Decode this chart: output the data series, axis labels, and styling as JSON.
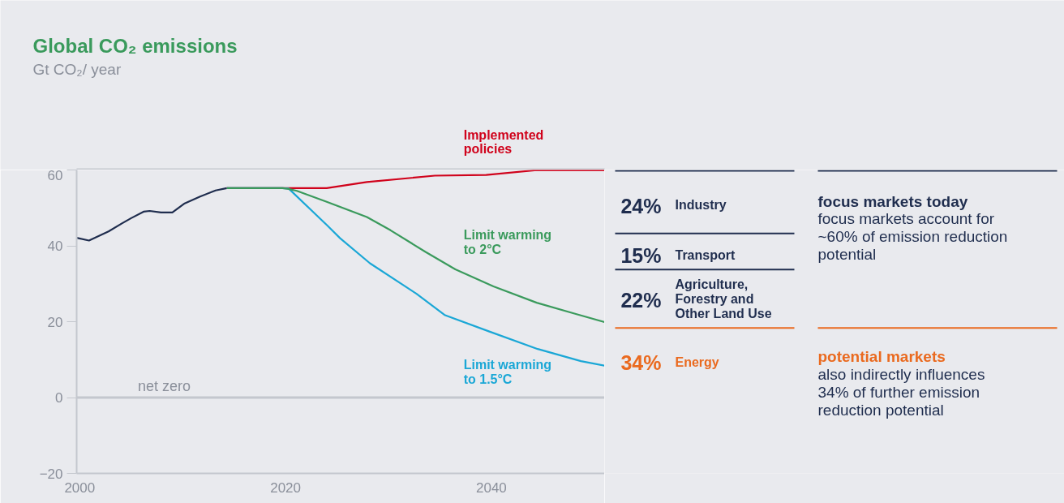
{
  "chart_data": {
    "type": "line",
    "title": "Global CO₂ emissions",
    "subtitle": "Gt CO₂/ year",
    "xlim": [
      1999.7,
      2051
    ],
    "xticks": [
      2000,
      2020,
      2040
    ],
    "ylim": [
      -20,
      60
    ],
    "yticks": [
      -20,
      0,
      20,
      40,
      60
    ],
    "grid": false,
    "series": [
      {
        "color": "#1f2d4e",
        "x": [
          1999.7,
          2000.9,
          2002.8,
          2004.1,
          2005.0,
          2006.2,
          2006.8,
          2007.9,
          2009.0,
          2010.2,
          2011.7,
          2013.2,
          2014.3
        ],
        "values": [
          42.1,
          41.4,
          43.8,
          45.9,
          47.3,
          49.0,
          49.2,
          48.8,
          48.8,
          51.2,
          53.0,
          54.6,
          55.2
        ]
      },
      {
        "name": "Implemented policies",
        "color": "#d0021b",
        "x": [
          2014.3,
          2024.0,
          2027.9,
          2034.5,
          2039.5,
          2044.2,
          2051
        ],
        "values": [
          55.2,
          55.2,
          56.8,
          58.5,
          58.7,
          59.9,
          59.9
        ]
      },
      {
        "name": "Limit warming to 1.5°C",
        "color": "#1aa7d6",
        "x": [
          2014.3,
          2019.7,
          2020.3,
          2024.0,
          2025.3,
          2028.2,
          2032.7,
          2035.5,
          2039.8,
          2044.5,
          2048.7,
          2051
        ],
        "values": [
          55.2,
          55.2,
          55.1,
          45.5,
          42.0,
          35.4,
          27.4,
          21.7,
          17.4,
          12.8,
          9.6,
          8.4
        ]
      },
      {
        "name": "Limit warming to 2°C",
        "color": "#3a9a5c",
        "x": [
          2014.3,
          2019.7,
          2020.3,
          2021.1,
          2024.0,
          2027.9,
          2030.2,
          2033.6,
          2036.5,
          2040.2,
          2044.4,
          2048.0,
          2051
        ],
        "values": [
          55.2,
          55.2,
          55.0,
          54.5,
          51.6,
          47.6,
          44.1,
          38.4,
          33.8,
          29.3,
          25.0,
          22.2,
          19.9
        ]
      }
    ],
    "ref_lines": [
      {
        "axis": "y",
        "value": 0,
        "label": "net zero",
        "color": "#c4c7ce"
      }
    ],
    "annotations": [
      "24%",
      "Industry",
      "15%",
      "Transport",
      "22%",
      "Agriculture, Forestry and Other Land Use",
      "34%",
      "Energy",
      "focus markets today",
      "focus markets account for ~60% of emission reduction potential",
      "potential markets",
      "also indirectly influences 34% of further emission reduction potential"
    ]
  }
}
